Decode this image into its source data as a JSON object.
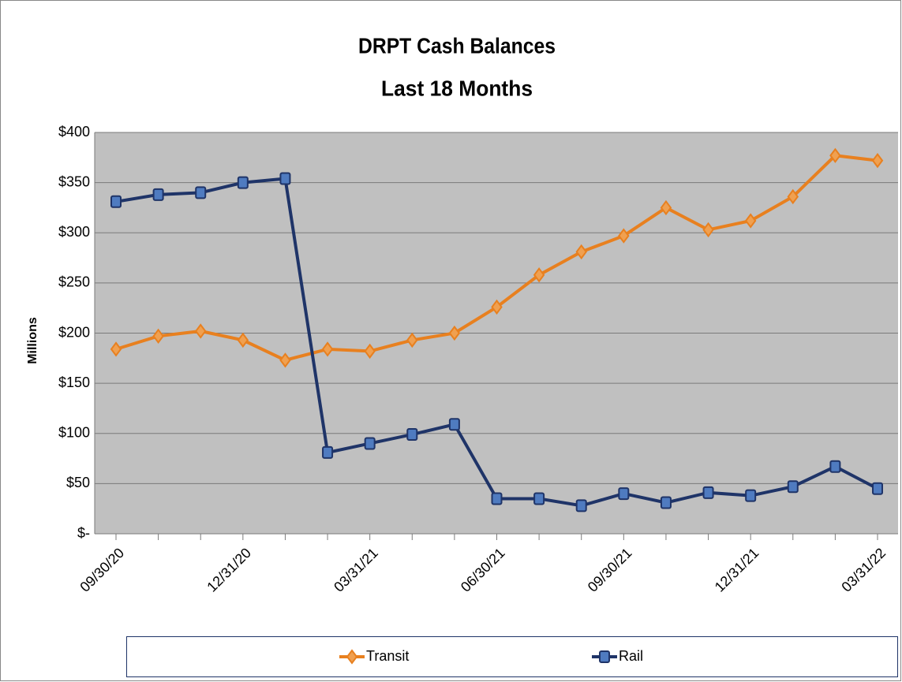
{
  "chart_data": {
    "type": "line",
    "title": "DRPT Cash Balances",
    "subtitle": "Last 18 Months",
    "y_label": "Millions",
    "categories": [
      "09/30/20",
      null,
      null,
      "12/31/20",
      null,
      null,
      "03/31/21",
      null,
      null,
      "06/30/21",
      null,
      null,
      "09/30/21",
      null,
      null,
      "12/31/21",
      null,
      null,
      "03/31/22"
    ],
    "series": [
      {
        "name": "Transit",
        "color": "#e8801f",
        "marker": "diamond",
        "values": [
          184,
          197,
          202,
          193,
          173,
          184,
          182,
          193,
          200,
          226,
          258,
          281,
          297,
          325,
          303,
          312,
          336,
          377,
          372
        ]
      },
      {
        "name": "Rail",
        "color": "#1f3468",
        "marker": "square",
        "values": [
          331,
          338,
          340,
          350,
          354,
          81,
          90,
          99,
          109,
          35,
          35,
          28,
          40,
          31,
          41,
          38,
          47,
          67,
          45
        ]
      }
    ],
    "ylim": [
      0,
      400
    ],
    "yticks": [
      {
        "value": 0,
        "label": "$-"
      },
      {
        "value": 50,
        "label": "$50"
      },
      {
        "value": 100,
        "label": "$100"
      },
      {
        "value": 150,
        "label": "$150"
      },
      {
        "value": 200,
        "label": "$200"
      },
      {
        "value": 250,
        "label": "$250"
      },
      {
        "value": 300,
        "label": "$300"
      },
      {
        "value": 350,
        "label": "$350"
      },
      {
        "value": 400,
        "label": "$400"
      }
    ],
    "grid": true,
    "legend": "bottom"
  }
}
